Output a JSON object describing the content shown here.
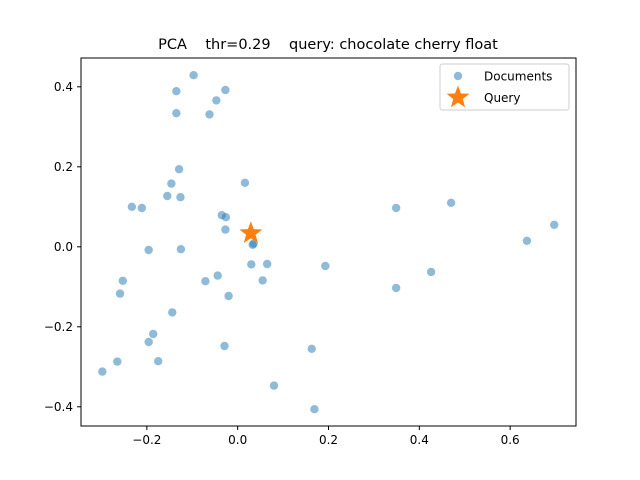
{
  "chart_data": {
    "type": "scatter",
    "title": "PCA    thr=0.29    query: chocolate cherry float",
    "xlabel": "",
    "ylabel": "",
    "xlim": [
      -0.345,
      0.745
    ],
    "ylim": [
      -0.448,
      0.472
    ],
    "x_ticks": [
      {
        "value": -0.2,
        "label": "−0.2"
      },
      {
        "value": 0.0,
        "label": "0.0"
      },
      {
        "value": 0.2,
        "label": "0.2"
      },
      {
        "value": 0.4,
        "label": "0.4"
      },
      {
        "value": 0.6,
        "label": "0.6"
      }
    ],
    "y_ticks": [
      {
        "value": 0.4,
        "label": "0.4"
      },
      {
        "value": 0.2,
        "label": "0.2"
      },
      {
        "value": 0.0,
        "label": "0.0"
      },
      {
        "value": -0.2,
        "label": "−0.2"
      },
      {
        "value": -0.4,
        "label": "−0.4"
      }
    ],
    "grid": false,
    "legend_position": "upper-right",
    "series": [
      {
        "name": "Documents",
        "marker": "circle",
        "color": "#1f77b4",
        "alpha": 0.5,
        "points": [
          [
            -0.097,
            0.429
          ],
          [
            -0.135,
            0.389
          ],
          [
            -0.027,
            0.392
          ],
          [
            -0.047,
            0.366
          ],
          [
            -0.135,
            0.334
          ],
          [
            -0.062,
            0.331
          ],
          [
            -0.129,
            0.194
          ],
          [
            0.016,
            0.16
          ],
          [
            -0.146,
            0.158
          ],
          [
            -0.155,
            0.127
          ],
          [
            -0.126,
            0.124
          ],
          [
            -0.233,
            0.1
          ],
          [
            -0.211,
            0.097
          ],
          [
            -0.035,
            0.079
          ],
          [
            -0.026,
            0.074
          ],
          [
            -0.027,
            0.043
          ],
          [
            0.349,
            0.097
          ],
          [
            0.47,
            0.11
          ],
          [
            0.697,
            0.055
          ],
          [
            0.637,
            0.015
          ],
          [
            0.035,
            0.008
          ],
          [
            0.033,
            0.005
          ],
          [
            -0.196,
            -0.008
          ],
          [
            -0.125,
            -0.006
          ],
          [
            0.03,
            -0.044
          ],
          [
            0.065,
            -0.043
          ],
          [
            0.193,
            -0.048
          ],
          [
            0.426,
            -0.063
          ],
          [
            -0.044,
            -0.072
          ],
          [
            -0.071,
            -0.086
          ],
          [
            0.055,
            -0.084
          ],
          [
            0.349,
            -0.103
          ],
          [
            -0.253,
            -0.085
          ],
          [
            -0.259,
            -0.117
          ],
          [
            -0.02,
            -0.123
          ],
          [
            -0.144,
            -0.164
          ],
          [
            -0.186,
            -0.218
          ],
          [
            -0.196,
            -0.238
          ],
          [
            -0.029,
            -0.248
          ],
          [
            0.163,
            -0.255
          ],
          [
            -0.265,
            -0.287
          ],
          [
            -0.175,
            -0.286
          ],
          [
            -0.298,
            -0.312
          ],
          [
            0.08,
            -0.347
          ],
          [
            0.169,
            -0.406
          ]
        ]
      },
      {
        "name": "Query",
        "marker": "star",
        "color": "#ff7f0e",
        "alpha": 1.0,
        "points": [
          [
            0.029,
            0.034
          ]
        ]
      }
    ]
  }
}
